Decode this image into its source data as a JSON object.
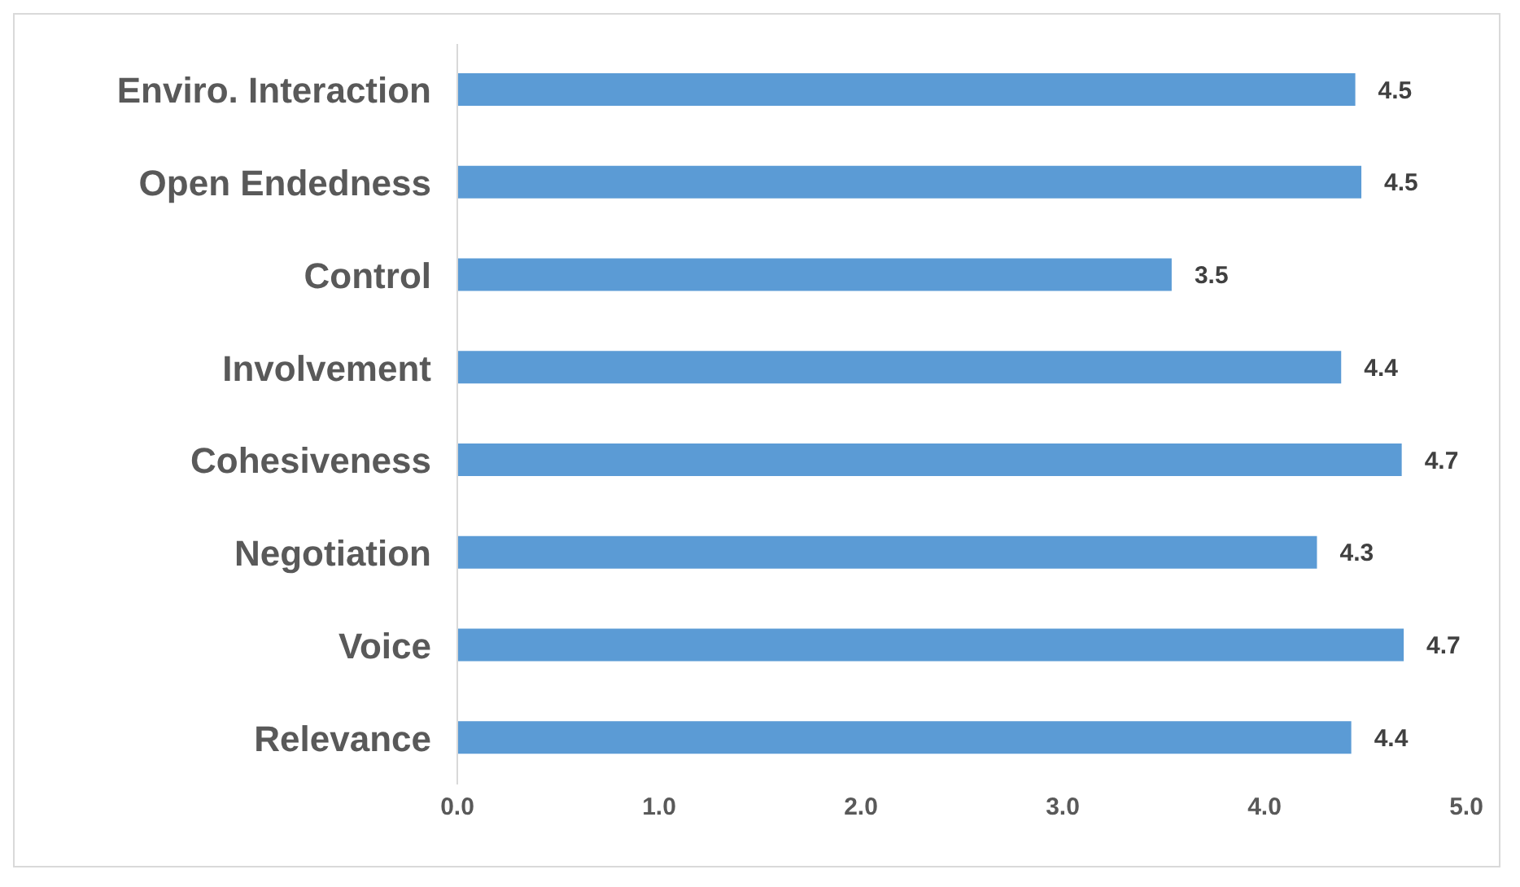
{
  "chart_data": {
    "type": "bar",
    "orientation": "horizontal",
    "categories": [
      "Enviro. Interaction",
      "Open Endedness",
      "Control",
      "Involvement",
      "Cohesiveness",
      "Negotiation",
      "Voice",
      "Relevance"
    ],
    "values": [
      4.45,
      4.48,
      3.54,
      4.38,
      4.68,
      4.26,
      4.69,
      4.43
    ],
    "value_labels": [
      "4.5",
      "4.5",
      "3.5",
      "4.4",
      "4.7",
      "4.3",
      "4.7",
      "4.4"
    ],
    "color": "#5b9bd5",
    "xlim": [
      0,
      5
    ],
    "xticks": [
      {
        "value": 0,
        "label": "0.0"
      },
      {
        "value": 1,
        "label": "1.0"
      },
      {
        "value": 2,
        "label": "2.0"
      },
      {
        "value": 3,
        "label": "3.0"
      },
      {
        "value": 4,
        "label": "4.0"
      },
      {
        "value": 5,
        "label": "5.0"
      }
    ],
    "grid": false,
    "legend": false
  }
}
